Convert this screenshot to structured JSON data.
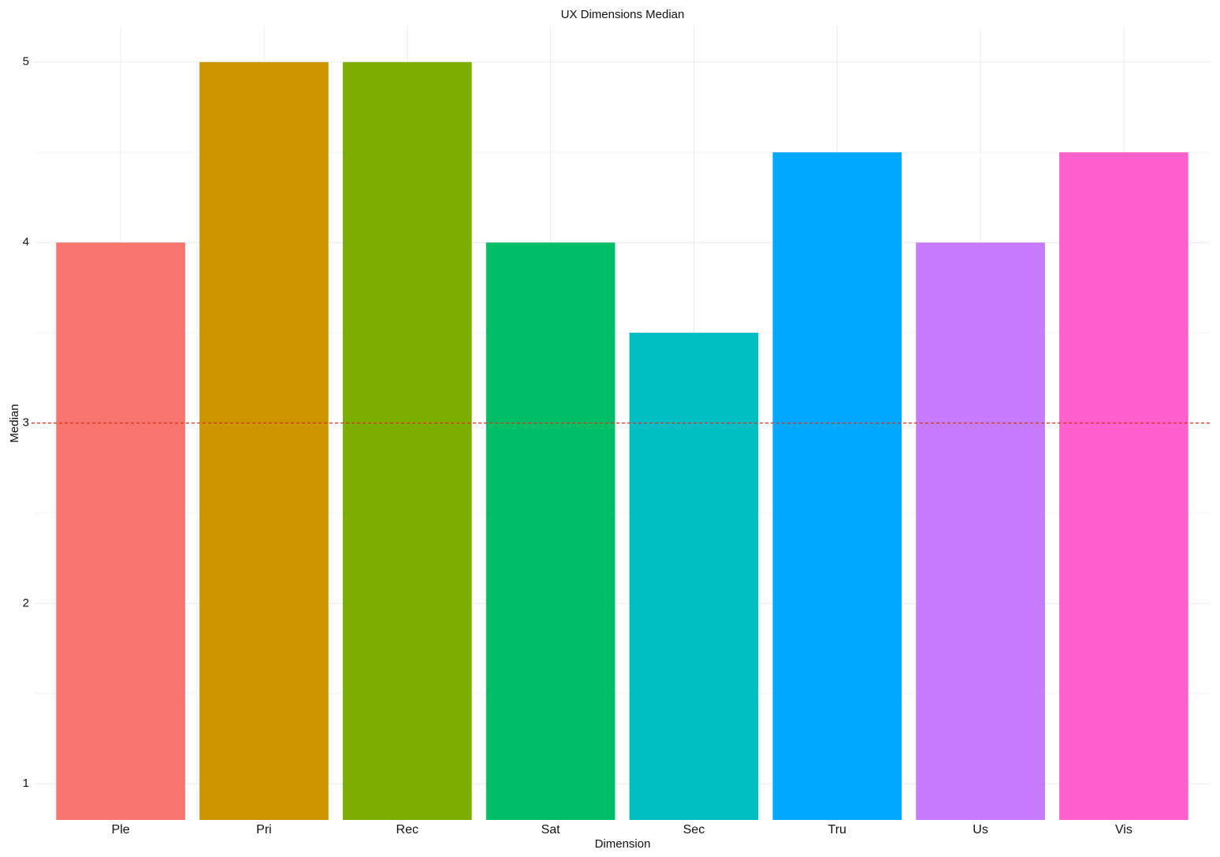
{
  "chart_data": {
    "type": "bar",
    "title": "UX Dimensions Median",
    "x_label": "Dimension",
    "y_label": "Median",
    "categories": [
      "Ple",
      "Pri",
      "Rec",
      "Sat",
      "Sec",
      "Tru",
      "Us",
      "Vis"
    ],
    "values": [
      4,
      5,
      5,
      4,
      3.5,
      4.5,
      4,
      4.5
    ],
    "colors": [
      "#F8766D",
      "#CD9600",
      "#7CAE00",
      "#00BE67",
      "#00BFC4",
      "#00A9FF",
      "#C77CFF",
      "#FF61CC"
    ],
    "ylim": [
      0.8,
      5.2
    ],
    "yticks": [
      1,
      2,
      3,
      4,
      5
    ],
    "minor_yticks": [
      1.5,
      2.5,
      3.5,
      4.5
    ],
    "grid": true,
    "hline": {
      "value": 3,
      "color": "#d7301f",
      "dashed": true
    }
  }
}
